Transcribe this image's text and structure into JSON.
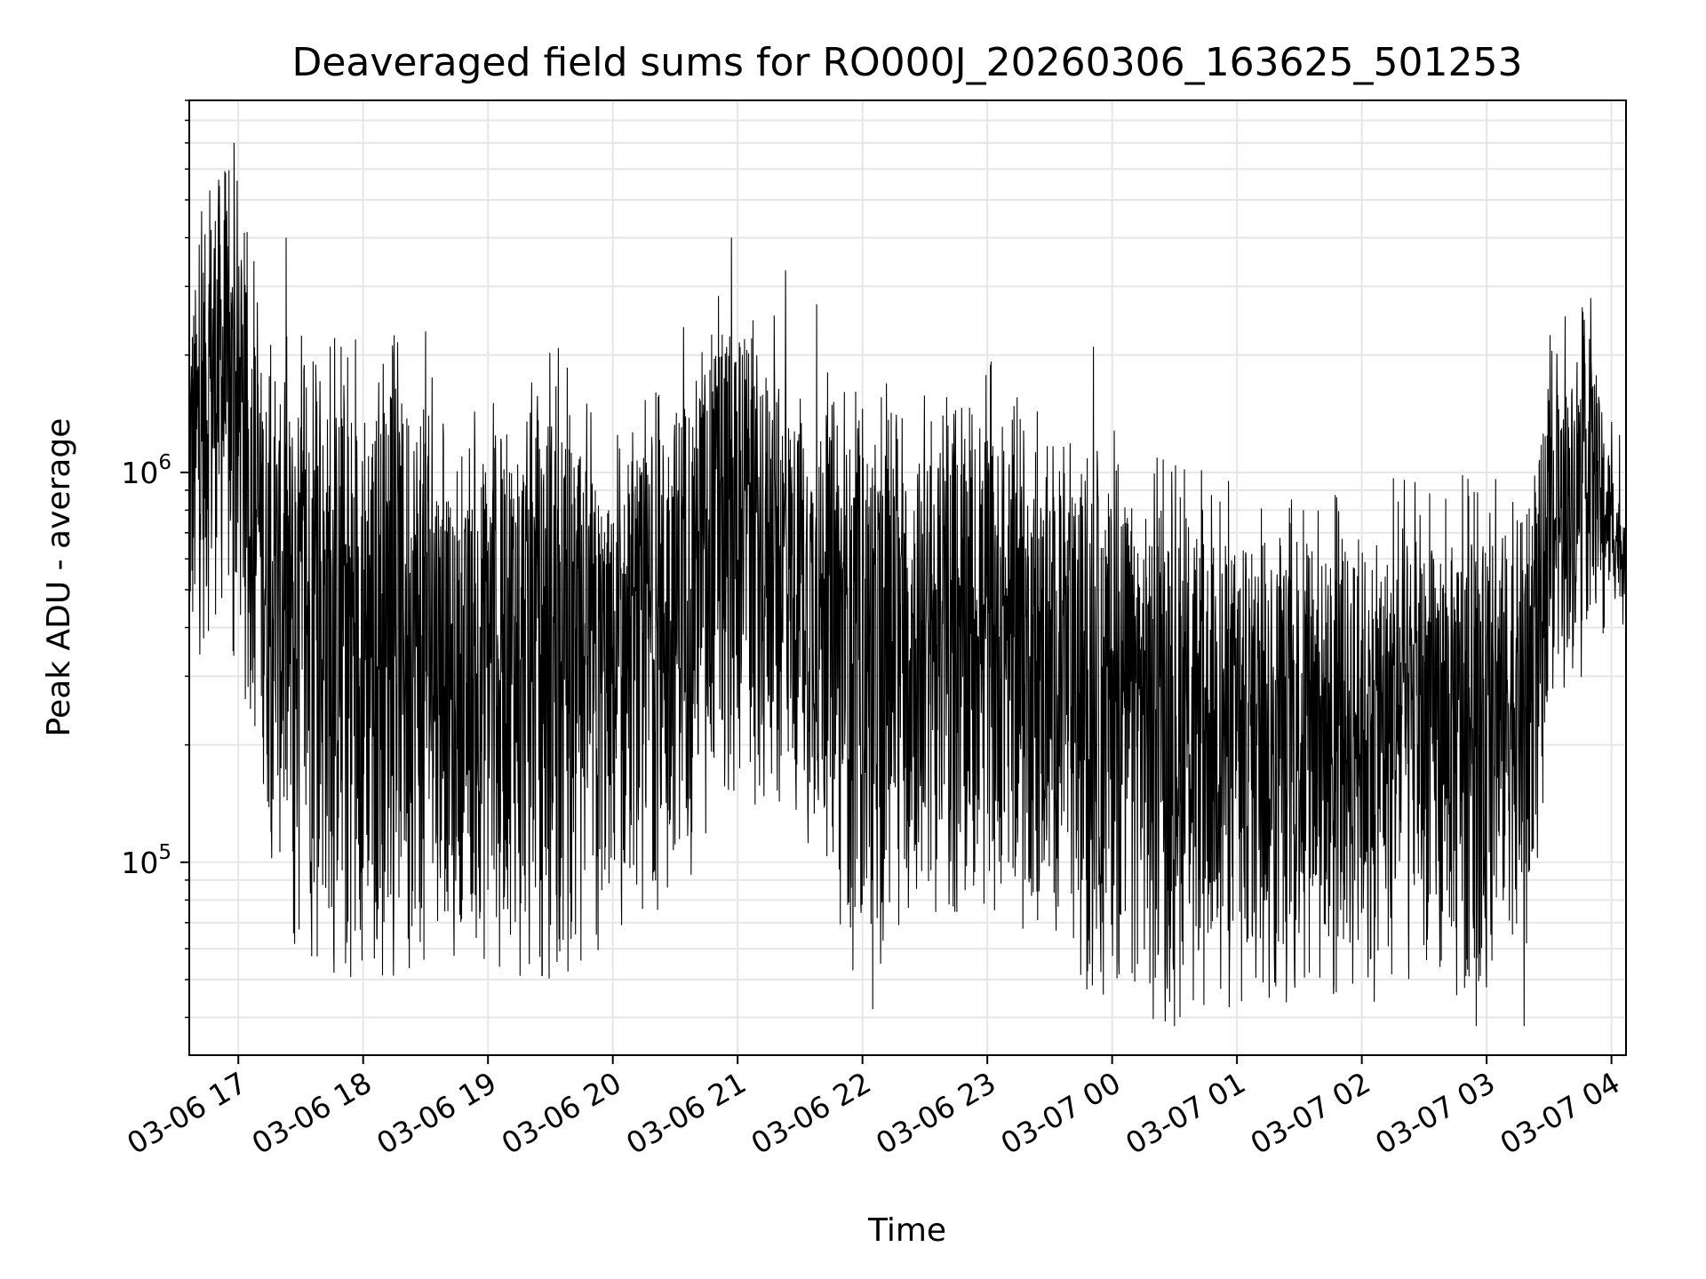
{
  "chart_data": {
    "type": "line",
    "title": "Deaveraged field sums for RO000J_20260306_163625_501253",
    "xlabel": "Time",
    "ylabel": "Peak ADU - average",
    "x_start": "2026-03-06 16:36:25",
    "x_end": "2026-03-07 04:07:00",
    "xlim": [
      "2026-03-06 16:36:25",
      "2026-03-07 04:07:00"
    ],
    "ylim": [
      32000,
      9000000
    ],
    "y_scale": "log",
    "grid": true,
    "line_color": "#000000",
    "x_ticks": [
      {
        "label": "03-06 17",
        "value": "2026-03-06 17:00"
      },
      {
        "label": "03-06 18",
        "value": "2026-03-06 18:00"
      },
      {
        "label": "03-06 19",
        "value": "2026-03-06 19:00"
      },
      {
        "label": "03-06 20",
        "value": "2026-03-06 20:00"
      },
      {
        "label": "03-06 21",
        "value": "2026-03-06 21:00"
      },
      {
        "label": "03-06 22",
        "value": "2026-03-06 22:00"
      },
      {
        "label": "03-06 23",
        "value": "2026-03-06 23:00"
      },
      {
        "label": "03-07 00",
        "value": "2026-03-07 00:00"
      },
      {
        "label": "03-07 01",
        "value": "2026-03-07 01:00"
      },
      {
        "label": "03-07 02",
        "value": "2026-03-07 02:00"
      },
      {
        "label": "03-07 03",
        "value": "2026-03-07 03:00"
      },
      {
        "label": "03-07 04",
        "value": "2026-03-07 04:00"
      }
    ],
    "y_ticks": [
      {
        "base": "10",
        "exp": "5",
        "value": 100000
      },
      {
        "base": "10",
        "exp": "6",
        "value": 1000000
      }
    ],
    "series_profile": {
      "description": "dense noisy series; per-time envelope of typical high / low values",
      "points": [
        {
          "t": "2026-03-06 16:36",
          "high": 2500000,
          "low": 280000
        },
        {
          "t": "2026-03-06 16:50",
          "high": 6000000,
          "low": 420000
        },
        {
          "t": "2026-03-06 17:05",
          "high": 2800000,
          "low": 330000
        },
        {
          "t": "2026-03-06 17:15",
          "high": 1500000,
          "low": 110000
        },
        {
          "t": "2026-03-06 17:30",
          "high": 1500000,
          "low": 68000
        },
        {
          "t": "2026-03-06 18:00",
          "high": 1550000,
          "low": 65000
        },
        {
          "t": "2026-03-06 18:30",
          "high": 1500000,
          "low": 68000
        },
        {
          "t": "2026-03-06 18:45",
          "high": 700000,
          "low": 70000
        },
        {
          "t": "2026-03-06 19:00",
          "high": 1200000,
          "low": 65000
        },
        {
          "t": "2026-03-06 19:30",
          "high": 1500000,
          "low": 62000
        },
        {
          "t": "2026-03-06 20:00",
          "high": 800000,
          "low": 75000
        },
        {
          "t": "2026-03-06 20:30",
          "high": 1500000,
          "low": 100000
        },
        {
          "t": "2026-03-06 21:00",
          "high": 2600000,
          "low": 200000
        },
        {
          "t": "2026-03-06 21:30",
          "high": 1300000,
          "low": 150000
        },
        {
          "t": "2026-03-06 22:00",
          "high": 1200000,
          "low": 60000
        },
        {
          "t": "2026-03-06 22:30",
          "high": 1100000,
          "low": 100000
        },
        {
          "t": "2026-03-06 23:00",
          "high": 1300000,
          "low": 90000
        },
        {
          "t": "2026-03-06 23:30",
          "high": 900000,
          "low": 70000
        },
        {
          "t": "2026-03-07 00:00",
          "high": 900000,
          "low": 55000
        },
        {
          "t": "2026-03-07 00:30",
          "high": 700000,
          "low": 50000
        },
        {
          "t": "2026-03-07 01:00",
          "high": 650000,
          "low": 55000
        },
        {
          "t": "2026-03-07 01:30",
          "high": 600000,
          "low": 55000
        },
        {
          "t": "2026-03-07 02:00",
          "high": 650000,
          "low": 55000
        },
        {
          "t": "2026-03-07 02:30",
          "high": 650000,
          "low": 55000
        },
        {
          "t": "2026-03-07 03:00",
          "high": 650000,
          "low": 55000
        },
        {
          "t": "2026-03-07 03:20",
          "high": 800000,
          "low": 70000
        },
        {
          "t": "2026-03-07 03:30",
          "high": 1500000,
          "low": 280000
        },
        {
          "t": "2026-03-07 03:50",
          "high": 2000000,
          "low": 420000
        },
        {
          "t": "2026-03-07 04:07",
          "high": 700000,
          "low": 480000
        }
      ],
      "peaks": [
        {
          "t": "2026-03-06 16:58",
          "value": 7000000
        },
        {
          "t": "2026-03-06 17:23",
          "value": 4000000
        },
        {
          "t": "2026-03-06 18:30",
          "value": 2300000
        },
        {
          "t": "2026-03-06 20:57",
          "value": 4000000
        },
        {
          "t": "2026-03-06 21:23",
          "value": 3300000
        },
        {
          "t": "2026-03-06 21:38",
          "value": 2700000
        },
        {
          "t": "2026-03-06 23:51",
          "value": 2100000
        },
        {
          "t": "2026-03-07 03:50",
          "value": 2800000
        }
      ],
      "dips": [
        {
          "t": "2026-03-06 22:05",
          "value": 42000
        },
        {
          "t": "2026-03-07 00:30",
          "value": 38000
        },
        {
          "t": "2026-03-07 02:55",
          "value": 38000
        },
        {
          "t": "2026-03-07 03:18",
          "value": 38000
        }
      ]
    }
  }
}
